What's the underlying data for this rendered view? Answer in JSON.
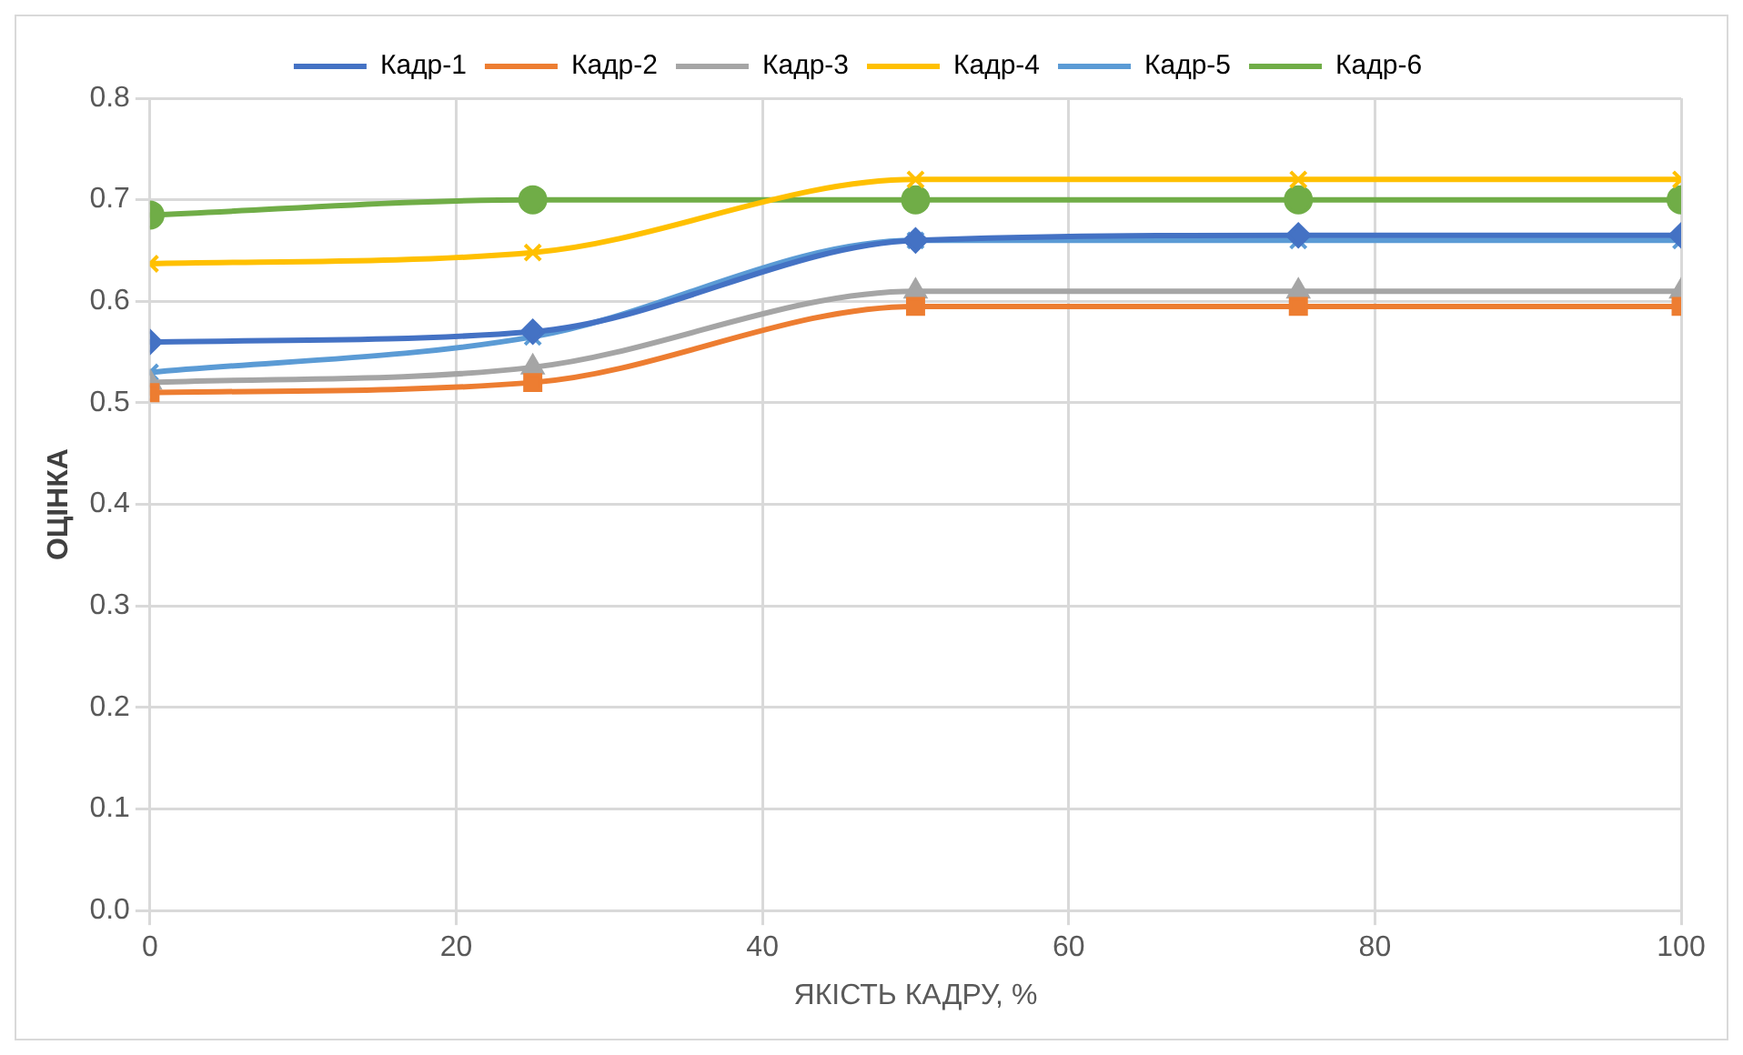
{
  "chart_data": {
    "type": "line",
    "xlabel": "ЯКІСТЬ КАДРУ, %",
    "ylabel": "ОЦІНКА",
    "x": [
      0,
      25,
      50,
      75,
      100
    ],
    "series": [
      {
        "name": "Кадр-1",
        "color": "#4472c4",
        "marker": "diamond",
        "values": [
          0.56,
          0.57,
          0.66,
          0.665,
          0.665
        ]
      },
      {
        "name": "Кадр-2",
        "color": "#ed7d31",
        "marker": "square",
        "values": [
          0.51,
          0.52,
          0.595,
          0.595,
          0.595
        ]
      },
      {
        "name": "Кадр-3",
        "color": "#a5a5a5",
        "marker": "triangle",
        "values": [
          0.52,
          0.535,
          0.61,
          0.61,
          0.61
        ]
      },
      {
        "name": "Кадр-4",
        "color": "#ffc000",
        "marker": "cross",
        "values": [
          0.637,
          0.648,
          0.72,
          0.72,
          0.72
        ]
      },
      {
        "name": "Кадр-5",
        "color": "#5b9bd5",
        "marker": "cross",
        "values": [
          0.53,
          0.565,
          0.66,
          0.66,
          0.66
        ]
      },
      {
        "name": "Кадр-6",
        "color": "#70ad47",
        "marker": "circle",
        "values": [
          0.685,
          0.7,
          0.7,
          0.7,
          0.7
        ]
      }
    ],
    "xlim": [
      0,
      100
    ],
    "xticks": [
      0,
      20,
      40,
      60,
      80,
      100
    ],
    "ylim": [
      0,
      0.8
    ],
    "yticks": [
      {
        "value": 0,
        "label": "0.0"
      },
      {
        "value": 0.1,
        "label": "0.1"
      },
      {
        "value": 0.2,
        "label": "0.2"
      },
      {
        "value": 0.3,
        "label": "0.3"
      },
      {
        "value": 0.4,
        "label": "0.4"
      },
      {
        "value": 0.5,
        "label": "0.5"
      },
      {
        "value": 0.6,
        "label": "0.6"
      },
      {
        "value": 0.7,
        "label": "0.7"
      },
      {
        "value": 0.8,
        "label": "0.8"
      }
    ],
    "grid": true,
    "legend": "top",
    "line_style": "solid"
  }
}
